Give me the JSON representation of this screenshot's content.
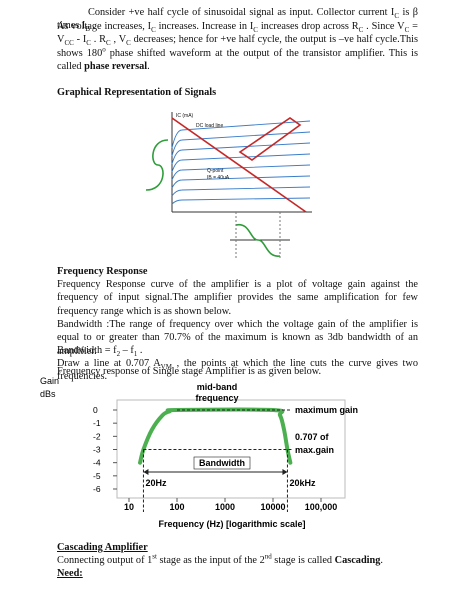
{
  "intro": [
    [
      "Consider +ve half cycle of sinusoidal signal as input. Collector current I",
      {
        "sub": "C"
      },
      " is β times I",
      {
        "sub": "B"
      },
      " ."
    ],
    [
      "As voltage increases, I",
      {
        "sub": "C"
      },
      " increases. Increase in I",
      {
        "sub": "C"
      },
      " increases drop across R",
      {
        "sub": "C"
      },
      " . Since V",
      {
        "sub": "C"
      },
      " = V",
      {
        "sub": "CC"
      },
      " - I",
      {
        "sub": "C"
      },
      " . R",
      {
        "sub": "C"
      },
      " , V",
      {
        "sub": "C"
      },
      "  decreases; hence for +ve half cycle, the output is –ve half cycle.This shows 180",
      {
        "sup": "o"
      },
      " phase shifted waveform at the output of the transistor amplifier.  This is called ",
      {
        "b": "phase reversal"
      },
      "."
    ]
  ],
  "graph_section": {
    "heading": "Graphical Representation of Signals",
    "figure": {
      "labels": [
        "IC (mA)",
        "DC load line",
        "Q-point",
        "IB = 40uA"
      ]
    }
  },
  "frequency_section": {
    "heading": "Frequency Response",
    "paragraphs": [
      [
        "Frequency Response curve of the amplifier is a plot of voltage gain against the frequency of input signal.The amplifier provides the same amplification for few frequency range which is as shown below."
      ],
      [
        "Bandwidth :The range of frequency over which the voltage gain of the amplifier is equal to or greater than 70.7% of the maximum is known as 3db bandwidth of an amplifier."
      ],
      [
        "Bandwidth = f",
        {
          "sub": "2"
        },
        " – f",
        {
          "sub": "1"
        },
        " ."
      ],
      [
        "Draw a line at 0.707 A",
        {
          "sub": "VM"
        },
        " , the points at which the line cuts the curve gives two frequencies."
      ]
    ],
    "figure_caption": "Frequency response of Single stage Amplifier is as given below.",
    "figure": {
      "y_label": [
        "Gain",
        "dBs"
      ],
      "ylim": [
        -6,
        0
      ],
      "yticks": [
        0,
        -1,
        -2,
        -3,
        -4,
        -5,
        -6
      ],
      "xlim": [
        10,
        100000
      ],
      "xticks": [
        10,
        100,
        1000,
        10000,
        {
          "value": 100000,
          "label": "100,000"
        }
      ],
      "x_label": "Frequency (Hz) [logarithmic scale]",
      "mid_band": [
        "mid-band",
        "frequency"
      ],
      "max_gain": "maximum gain",
      "half_power": [
        "0.707 of",
        "max.gain"
      ],
      "bandwidth": "Bandwidth",
      "cutoffs": [
        {
          "value": 20,
          "label": "20Hz"
        },
        {
          "value": 20000,
          "label": "20kHz"
        }
      ],
      "curve": {
        "color": "#4caf50",
        "x": [
          17,
          20,
          30,
          50,
          70,
          100,
          10000,
          14000,
          17000,
          20000,
          23000
        ],
        "values": [
          -4,
          -3,
          -1.5,
          -0.4,
          -0.1,
          0,
          0,
          -0.4,
          -1.5,
          -3,
          -4
        ]
      }
    }
  },
  "cascading_section": {
    "heading": "Cascading Amplifier",
    "paragraph": [
      "Connecting output of 1",
      {
        "sup": "st"
      },
      " stage as the input of the 2",
      {
        "sup": "nd"
      },
      " stage is called ",
      {
        "b": "Cascading"
      },
      "."
    ],
    "subheading": "Need:"
  }
}
